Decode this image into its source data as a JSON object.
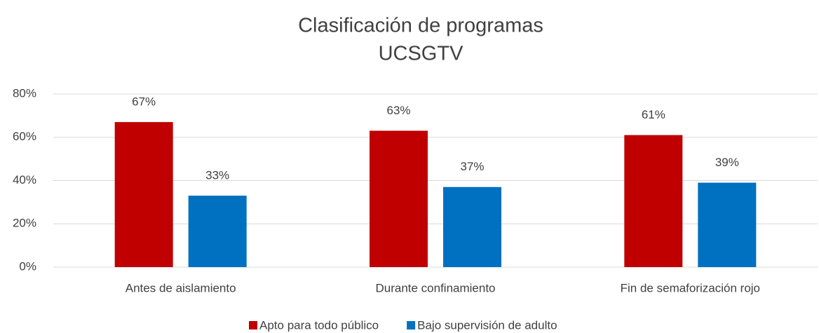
{
  "chart_data": {
    "type": "bar",
    "title": "Clasificación de programas",
    "subtitle": "UCSGTV",
    "categories": [
      "Antes de aislamiento",
      "Durante confinamiento",
      "Fin de semaforización rojo"
    ],
    "series": [
      {
        "name": "Apto para todo público",
        "color": "#c00000",
        "values": [
          67,
          63,
          61
        ],
        "value_labels": [
          "67%",
          "63%",
          "61%"
        ]
      },
      {
        "name": "Bajo supervisión de adulto",
        "color": "#0070c0",
        "values": [
          33,
          37,
          39
        ],
        "value_labels": [
          "33%",
          "37%",
          "39%"
        ]
      }
    ],
    "ylim": [
      0,
      80
    ],
    "yticks": [
      {
        "value": 0,
        "label": "0%"
      },
      {
        "value": 20,
        "label": "20%"
      },
      {
        "value": 40,
        "label": "40%"
      },
      {
        "value": 60,
        "label": "60%"
      },
      {
        "value": 80,
        "label": "80%"
      }
    ],
    "grid": true,
    "legend": "bottom"
  }
}
